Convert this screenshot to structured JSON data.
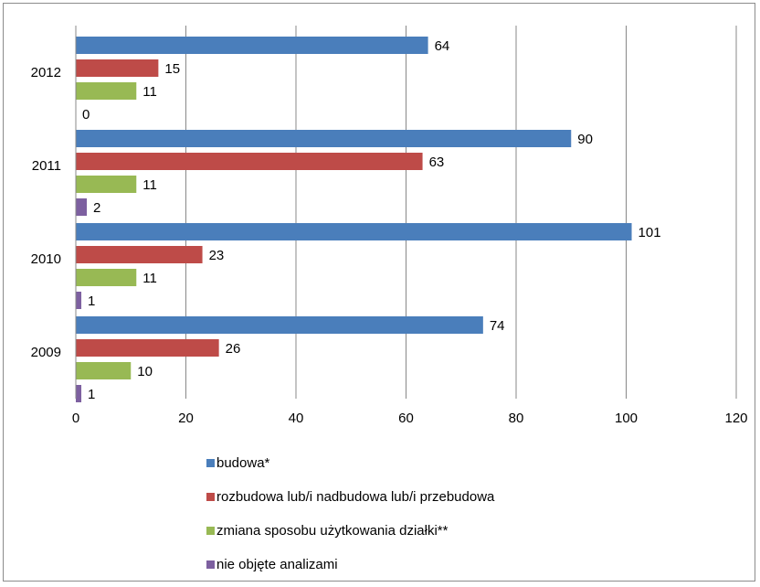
{
  "chart_data": {
    "type": "bar",
    "orientation": "horizontal",
    "categories": [
      "2012",
      "2011",
      "2010",
      "2009"
    ],
    "series": [
      {
        "name": "budowa*",
        "color": "#4a7ebb",
        "values": [
          64,
          90,
          101,
          74
        ]
      },
      {
        "name": "rozbudowa lub/i nadbudowa lub/i przebudowa",
        "color": "#be4b48",
        "values": [
          15,
          63,
          23,
          26
        ]
      },
      {
        "name": "zmiana sposobu użytkowania działki**",
        "color": "#98b954",
        "values": [
          11,
          11,
          11,
          10
        ]
      },
      {
        "name": "nie objęte analizami",
        "color": "#7d60a0",
        "values": [
          0,
          2,
          1,
          1
        ]
      }
    ],
    "xlim": [
      0,
      120
    ],
    "xticks": [
      "0",
      "20",
      "40",
      "60",
      "80",
      "100",
      "120"
    ],
    "grid": "vertical",
    "legend_position": "bottom",
    "title": "",
    "xlabel": "",
    "ylabel": ""
  }
}
